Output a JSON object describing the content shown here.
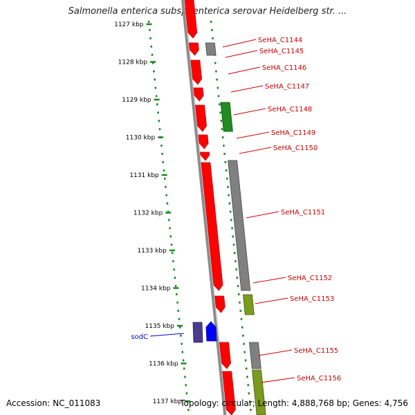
{
  "title": "Salmonella enterica subsp. enterica serovar Heidelberg str. ...",
  "footer": {
    "accession": "Accession: NC_011083",
    "summary": "Topology: circular; Length: 4,888,768 bp; Genes: 4,756"
  },
  "ruler": {
    "ticks": [
      "1127 kbp",
      "1128 kbp",
      "1129 kbp",
      "1130 kbp",
      "1131 kbp",
      "1132 kbp",
      "1133 kbp",
      "1134 kbp",
      "1135 kbp",
      "1136 kbp",
      "1137 kbp"
    ],
    "color": "#1a8a1a"
  },
  "colors": {
    "red": "#ff0000",
    "gray": "#808080",
    "green": "#228b22",
    "olive": "#7a9a20",
    "navy": "#483d8b",
    "blue": "#0000ff",
    "label_red": "#cc0000",
    "label_blue": "#0000cc",
    "backbone": "#8c8c8c"
  },
  "genes": [
    {
      "label": "SeHA_C1144",
      "color": "red"
    },
    {
      "label": "SeHA_C1145",
      "color": "gray"
    },
    {
      "label": "SeHA_C1146",
      "color": "red"
    },
    {
      "label": "SeHA_C1147",
      "color": "red"
    },
    {
      "label": "SeHA_C1148",
      "color": "green"
    },
    {
      "label": "SeHA_C1149",
      "color": "red"
    },
    {
      "label": "SeHA_C1150",
      "color": "red"
    },
    {
      "label": "SeHA_C1151",
      "color": "gray"
    },
    {
      "label": "SeHA_C1152",
      "color": "red"
    },
    {
      "label": "SeHA_C1153",
      "color": "olive"
    },
    {
      "label": "sodC",
      "color": "blue"
    },
    {
      "label": "SeHA_C1155",
      "color": "gray"
    },
    {
      "label": "SeHA_C1156",
      "color": "olive"
    }
  ]
}
